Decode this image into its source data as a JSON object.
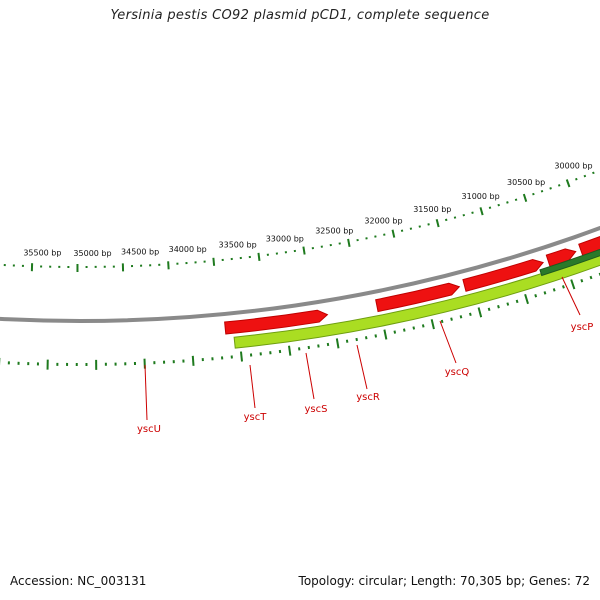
{
  "title": "Yersinia pestis CO92 plasmid pCD1, complete sequence",
  "footer": {
    "accession": "Accession: NC_003131",
    "summary": "Topology: circular; Length: 70,305 bp; Genes: 72"
  },
  "colors": {
    "backbone": "#8a8a8a",
    "forward_gene": "#ee1111",
    "reverse_gene": "#aadd22",
    "dark_gene": "#2a7a2a",
    "ticks": "#1e7a1e",
    "gene_label": "#cc0000"
  },
  "scale_labels": [
    "35500 bp",
    "35000 bp",
    "34500 bp",
    "34000 bp",
    "33500 bp",
    "33000 bp",
    "32500 bp",
    "32000 bp",
    "31500 bp",
    "31000 bp",
    "30500 bp",
    "30000 bp"
  ],
  "gene_labels": [
    "yscU",
    "yscT",
    "yscS",
    "yscR",
    "yscQ",
    "yscP"
  ]
}
